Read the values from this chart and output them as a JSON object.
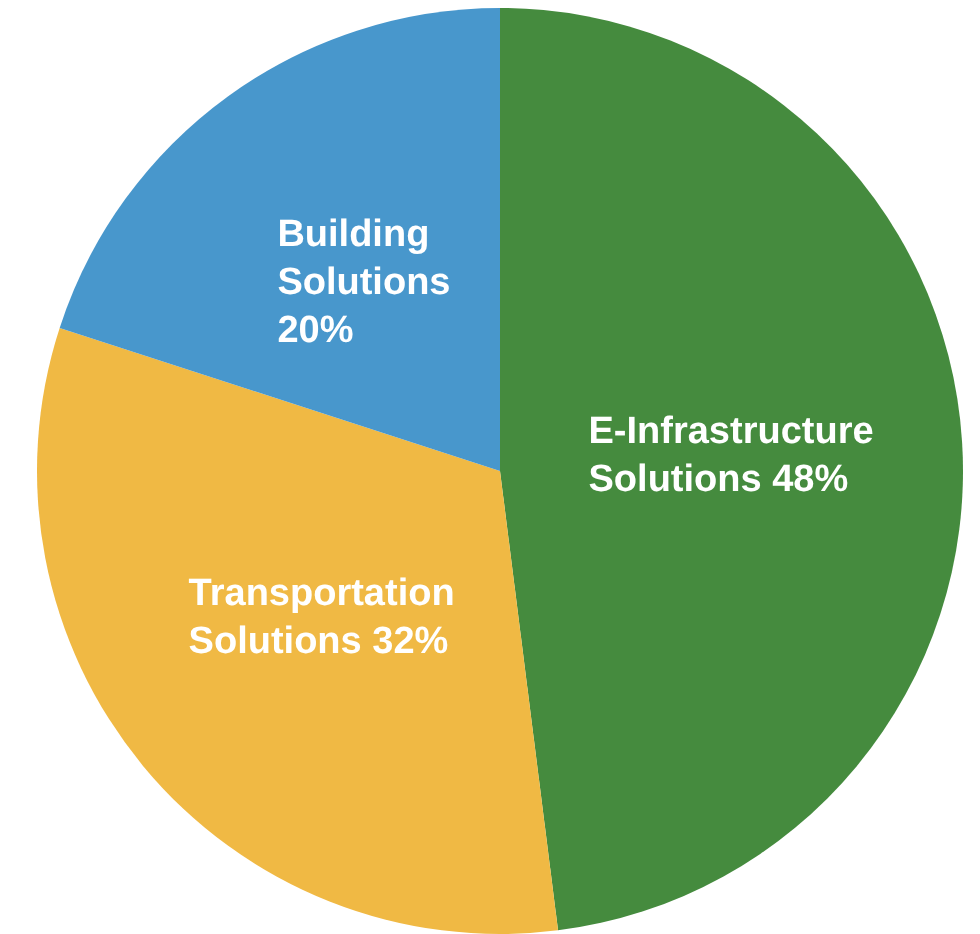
{
  "chart_data": {
    "type": "pie",
    "categories": [
      "E-Infrastructure Solutions",
      "Transportation Solutions",
      "Building Solutions"
    ],
    "values": [
      48,
      32,
      20
    ],
    "colors": [
      "#458b3e",
      "#f0b944",
      "#4897cc"
    ],
    "value_labels": [
      "48%",
      "32%",
      "20%"
    ],
    "legend": false
  }
}
